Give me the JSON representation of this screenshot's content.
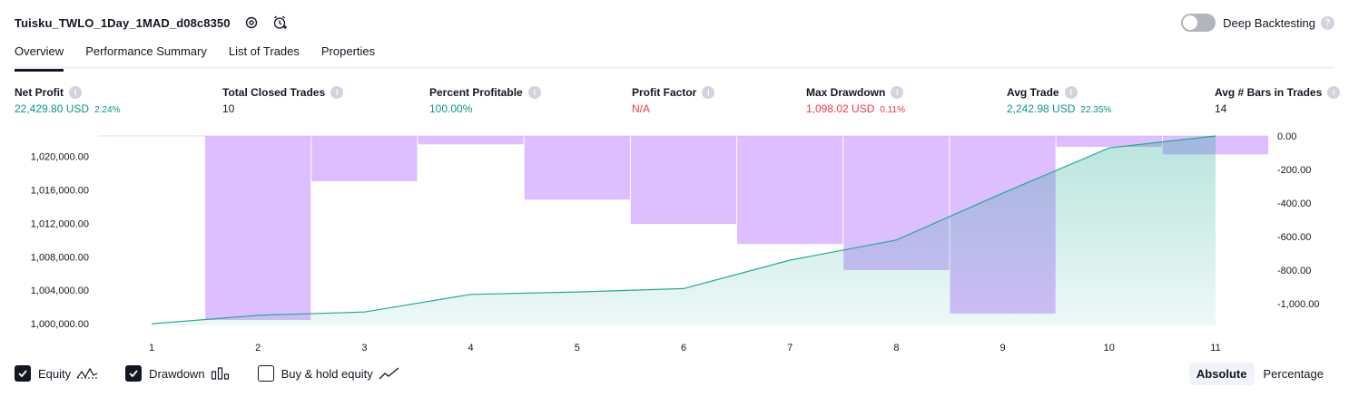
{
  "header": {
    "strategy_name": "Tuisku_TWLO_1Day_1MAD_d08c8350",
    "deep_backtesting_label": "Deep Backtesting",
    "deep_backtesting_enabled": false
  },
  "tabs": [
    {
      "label": "Overview",
      "active": true
    },
    {
      "label": "Performance Summary",
      "active": false
    },
    {
      "label": "List of Trades",
      "active": false
    },
    {
      "label": "Properties",
      "active": false
    }
  ],
  "metrics": [
    {
      "label": "Net Profit",
      "value": "22,429.80 USD",
      "pct": "2.24%",
      "color": "#089981"
    },
    {
      "label": "Total Closed Trades",
      "value": "10",
      "pct": "",
      "color": "#131722"
    },
    {
      "label": "Percent Profitable",
      "value": "100.00%",
      "pct": "",
      "color": "#089981"
    },
    {
      "label": "Profit Factor",
      "value": "N/A",
      "pct": "",
      "color": "#f23645"
    },
    {
      "label": "Max Drawdown",
      "value": "1,098.02 USD",
      "pct": "0.11%",
      "color": "#f23645"
    },
    {
      "label": "Avg Trade",
      "value": "2,242.98 USD",
      "pct": "22.35%",
      "color": "#089981"
    },
    {
      "label": "Avg # Bars in Trades",
      "value": "14",
      "pct": "",
      "color": "#131722"
    }
  ],
  "chart_data": {
    "type": "area",
    "x": [
      1,
      2,
      3,
      4,
      5,
      6,
      7,
      8,
      9,
      10,
      11
    ],
    "equity_axis": {
      "ticks": [
        "1,000,000.00",
        "1,004,000.00",
        "1,008,000.00",
        "1,012,000.00",
        "1,016,000.00",
        "1,020,000.00"
      ],
      "tick_values": [
        1000000,
        1004000,
        1008000,
        1012000,
        1016000,
        1020000
      ],
      "range": [
        999800,
        1022430
      ]
    },
    "drawdown_axis": {
      "ticks": [
        "0.00",
        "-200.00",
        "-400.00",
        "-600.00",
        "-800.00",
        "-1,000.00"
      ],
      "tick_values": [
        0,
        -200,
        -400,
        -600,
        -800,
        -1000
      ],
      "range": [
        -1098.02,
        0
      ]
    },
    "series": [
      {
        "name": "Equity",
        "color": "#22ab94",
        "values": [
          1000000,
          1001000,
          1001400,
          1003500,
          1003800,
          1004200,
          1007600,
          1010000,
          1015600,
          1021000,
          1022430
        ]
      },
      {
        "name": "Drawdown",
        "color": "#d1a8ff",
        "values": [
          0,
          -1098.02,
          -270,
          -50,
          -380,
          -525,
          -645,
          -800,
          -1060,
          -65,
          -110
        ]
      }
    ]
  },
  "legend": [
    {
      "label": "Equity",
      "checked": true
    },
    {
      "label": "Drawdown",
      "checked": true
    },
    {
      "label": "Buy & hold equity",
      "checked": false
    }
  ],
  "modes": [
    {
      "label": "Absolute",
      "active": true
    },
    {
      "label": "Percentage",
      "active": false
    }
  ]
}
